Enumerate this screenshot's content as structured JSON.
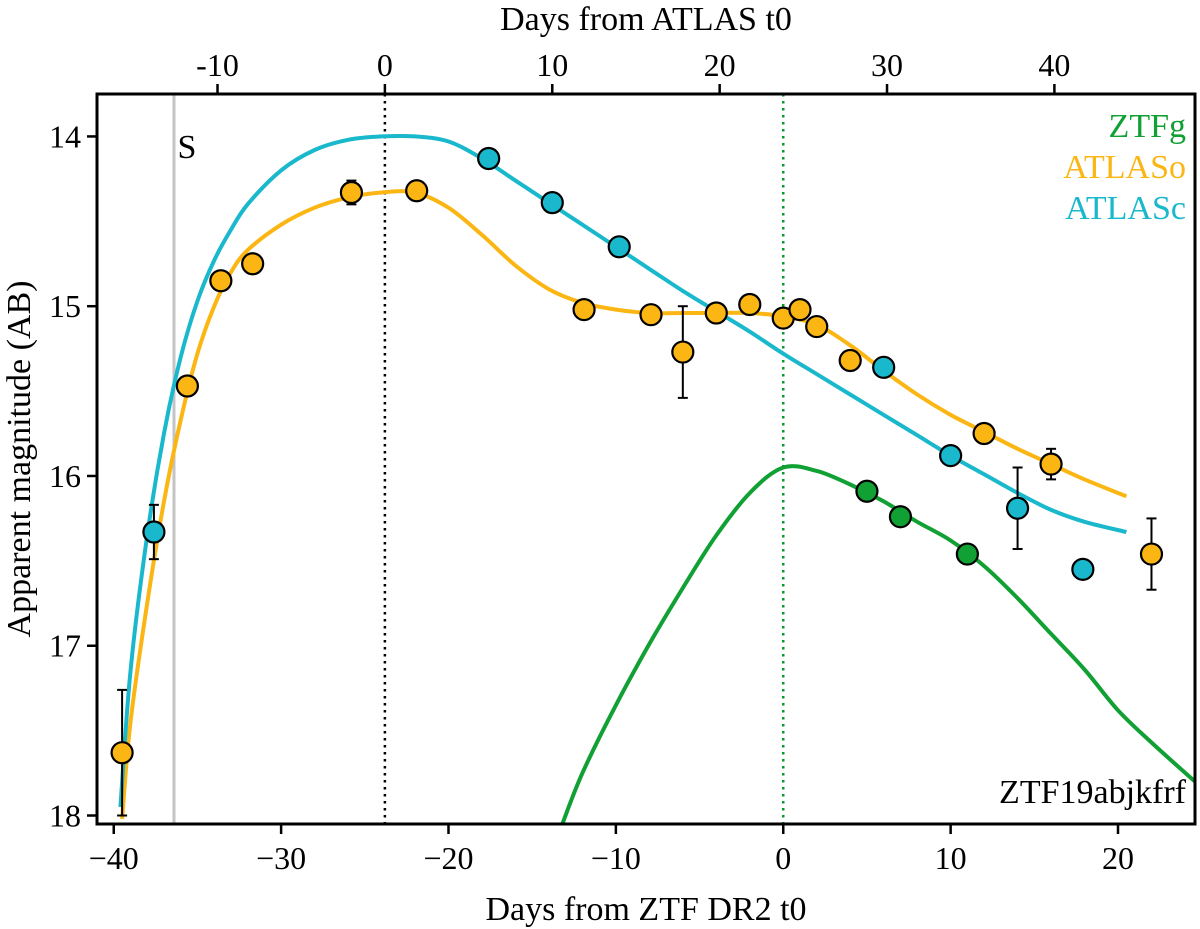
{
  "chart_data": {
    "type": "scatter",
    "object_name": "ZTF19abjkfrf",
    "xlabel": "Days from ZTF DR2 t0",
    "x2label": "Days from ATLAS t0",
    "ylabel": "Apparent magnitude (AB)",
    "xlim": [
      -41,
      24.6
    ],
    "ylim": [
      18.05,
      13.75
    ],
    "x_ticks": [
      -40,
      -30,
      -20,
      -10,
      0,
      10,
      20
    ],
    "x_tick_labels": [
      "−40",
      "−30",
      "−20",
      "−10",
      "0",
      "10",
      "20"
    ],
    "x2_offset": -23.8,
    "x2_ticks": [
      -10,
      0,
      10,
      20,
      30,
      40
    ],
    "x2_tick_labels": [
      "-10",
      "0",
      "10",
      "20",
      "30",
      "40"
    ],
    "y_ticks": [
      14,
      15,
      16,
      17,
      18
    ],
    "y_tick_labels": [
      "14",
      "15",
      "16",
      "17",
      "18"
    ],
    "vlines": [
      {
        "x": -36.4,
        "color": "#c4c4c4",
        "style": "solid",
        "label": "S"
      },
      {
        "x": -23.8,
        "color": "#000000",
        "style": "dotted"
      },
      {
        "x": 0.0,
        "color": "#0a9a2a",
        "style": "dotted"
      }
    ],
    "legend": {
      "position": "top-right",
      "entries": [
        "ZTFg",
        "ATLASo",
        "ATLASc"
      ]
    },
    "series": [
      {
        "name": "ZTFg",
        "color": "#11a034",
        "points": [
          {
            "x": 5.0,
            "y": 16.09
          },
          {
            "x": 7.0,
            "y": 16.24
          },
          {
            "x": 11.0,
            "y": 16.46
          }
        ],
        "model": [
          [
            -13.2,
            18.05
          ],
          [
            -12.0,
            17.75
          ],
          [
            -10.0,
            17.35
          ],
          [
            -8.0,
            16.99
          ],
          [
            -6.0,
            16.66
          ],
          [
            -4.0,
            16.35
          ],
          [
            -2.0,
            16.1
          ],
          [
            0.0,
            15.95
          ],
          [
            2.0,
            15.97
          ],
          [
            4.0,
            16.05
          ],
          [
            6.0,
            16.15
          ],
          [
            8.0,
            16.27
          ],
          [
            10.0,
            16.38
          ],
          [
            12.0,
            16.53
          ],
          [
            14.0,
            16.72
          ],
          [
            16.0,
            16.93
          ],
          [
            18.0,
            17.14
          ],
          [
            20.0,
            17.38
          ],
          [
            22.0,
            17.57
          ],
          [
            24.6,
            17.8
          ]
        ]
      },
      {
        "name": "ATLASo",
        "color": "#fbb613",
        "points": [
          {
            "x": -39.5,
            "y": 17.63,
            "err": 0.37
          },
          {
            "x": -35.6,
            "y": 15.47
          },
          {
            "x": -33.6,
            "y": 14.85
          },
          {
            "x": -31.7,
            "y": 14.75
          },
          {
            "x": -25.8,
            "y": 14.33,
            "err": 0.07
          },
          {
            "x": -21.9,
            "y": 14.32
          },
          {
            "x": -11.9,
            "y": 15.02
          },
          {
            "x": -7.9,
            "y": 15.05
          },
          {
            "x": -6.0,
            "y": 15.27,
            "err": 0.27
          },
          {
            "x": -4.0,
            "y": 15.04
          },
          {
            "x": -2.0,
            "y": 14.99
          },
          {
            "x": 0.0,
            "y": 15.07
          },
          {
            "x": 1.0,
            "y": 15.02
          },
          {
            "x": 2.0,
            "y": 15.12
          },
          {
            "x": 4.0,
            "y": 15.32
          },
          {
            "x": 12.0,
            "y": 15.75
          },
          {
            "x": 16.0,
            "y": 15.93,
            "err": 0.09
          },
          {
            "x": 22.0,
            "y": 16.46,
            "err": 0.21
          }
        ],
        "model": [
          [
            -39.5,
            18.02
          ],
          [
            -39.0,
            17.45
          ],
          [
            -38.0,
            16.75
          ],
          [
            -37.0,
            16.15
          ],
          [
            -36.0,
            15.67
          ],
          [
            -35.0,
            15.28
          ],
          [
            -34.0,
            15.0
          ],
          [
            -33.0,
            14.8
          ],
          [
            -32.0,
            14.67
          ],
          [
            -30.0,
            14.52
          ],
          [
            -28.0,
            14.42
          ],
          [
            -26.0,
            14.36
          ],
          [
            -24.0,
            14.33
          ],
          [
            -22.0,
            14.33
          ],
          [
            -20.0,
            14.42
          ],
          [
            -18.0,
            14.58
          ],
          [
            -16.0,
            14.76
          ],
          [
            -14.0,
            14.9
          ],
          [
            -12.0,
            14.98
          ],
          [
            -10.0,
            15.02
          ],
          [
            -8.0,
            15.04
          ],
          [
            -6.0,
            15.04
          ],
          [
            -4.0,
            15.04
          ],
          [
            -2.0,
            15.04
          ],
          [
            0.0,
            15.06
          ],
          [
            2.0,
            15.11
          ],
          [
            4.0,
            15.23
          ],
          [
            6.0,
            15.38
          ],
          [
            8.0,
            15.52
          ],
          [
            10.0,
            15.64
          ],
          [
            12.0,
            15.74
          ],
          [
            14.0,
            15.84
          ],
          [
            16.0,
            15.93
          ],
          [
            18.0,
            16.02
          ],
          [
            20.5,
            16.12
          ]
        ]
      },
      {
        "name": "ATLASc",
        "color": "#1ab8cc",
        "points": [
          {
            "x": -37.6,
            "y": 16.33,
            "err": 0.16
          },
          {
            "x": -17.6,
            "y": 14.13
          },
          {
            "x": -13.8,
            "y": 14.39
          },
          {
            "x": -9.8,
            "y": 14.65
          },
          {
            "x": 6.0,
            "y": 15.36
          },
          {
            "x": 10.0,
            "y": 15.88
          },
          {
            "x": 14.0,
            "y": 16.19,
            "err": 0.24
          },
          {
            "x": 17.9,
            "y": 16.55
          }
        ],
        "model": [
          [
            -39.6,
            17.95
          ],
          [
            -39.0,
            17.15
          ],
          [
            -38.0,
            16.35
          ],
          [
            -37.0,
            15.75
          ],
          [
            -36.0,
            15.3
          ],
          [
            -35.0,
            14.97
          ],
          [
            -34.0,
            14.73
          ],
          [
            -33.0,
            14.55
          ],
          [
            -32.0,
            14.4
          ],
          [
            -30.0,
            14.2
          ],
          [
            -28.0,
            14.08
          ],
          [
            -26.0,
            14.02
          ],
          [
            -24.0,
            14.0
          ],
          [
            -22.0,
            14.0
          ],
          [
            -20.0,
            14.03
          ],
          [
            -18.0,
            14.13
          ],
          [
            -16.0,
            14.26
          ],
          [
            -14.0,
            14.39
          ],
          [
            -12.0,
            14.52
          ],
          [
            -10.0,
            14.65
          ],
          [
            -8.0,
            14.78
          ],
          [
            -6.0,
            14.91
          ],
          [
            -4.0,
            15.03
          ],
          [
            -2.0,
            15.15
          ],
          [
            0.0,
            15.28
          ],
          [
            2.0,
            15.4
          ],
          [
            4.0,
            15.52
          ],
          [
            6.0,
            15.64
          ],
          [
            8.0,
            15.76
          ],
          [
            10.0,
            15.88
          ],
          [
            12.0,
            15.99
          ],
          [
            14.0,
            16.1
          ],
          [
            16.0,
            16.2
          ],
          [
            18.0,
            16.27
          ],
          [
            20.5,
            16.33
          ]
        ]
      }
    ]
  }
}
